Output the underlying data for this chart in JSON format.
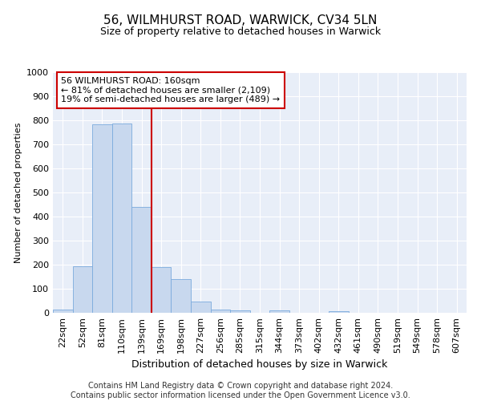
{
  "title": "56, WILMHURST ROAD, WARWICK, CV34 5LN",
  "subtitle": "Size of property relative to detached houses in Warwick",
  "xlabel": "Distribution of detached houses by size in Warwick",
  "ylabel": "Number of detached properties",
  "bar_color": "#c8d8ee",
  "bar_edge_color": "#7aaadd",
  "categories": [
    "22sqm",
    "52sqm",
    "81sqm",
    "110sqm",
    "139sqm",
    "169sqm",
    "198sqm",
    "227sqm",
    "256sqm",
    "285sqm",
    "315sqm",
    "344sqm",
    "373sqm",
    "402sqm",
    "432sqm",
    "461sqm",
    "490sqm",
    "519sqm",
    "549sqm",
    "578sqm",
    "607sqm"
  ],
  "values": [
    15,
    195,
    783,
    787,
    440,
    190,
    140,
    47,
    13,
    10,
    0,
    10,
    0,
    0,
    8,
    0,
    0,
    0,
    0,
    0,
    0
  ],
  "ylim": [
    0,
    1000
  ],
  "yticks": [
    0,
    100,
    200,
    300,
    400,
    500,
    600,
    700,
    800,
    900,
    1000
  ],
  "vline_color": "#cc0000",
  "vline_x_index": 5,
  "annotation_text": "56 WILMHURST ROAD: 160sqm\n← 81% of detached houses are smaller (2,109)\n19% of semi-detached houses are larger (489) →",
  "annotation_box_color": "#cc0000",
  "footer_line1": "Contains HM Land Registry data © Crown copyright and database right 2024.",
  "footer_line2": "Contains public sector information licensed under the Open Government Licence v3.0.",
  "background_color": "#e8eef8",
  "grid_color": "#ffffff",
  "title_fontsize": 11,
  "subtitle_fontsize": 9,
  "ylabel_fontsize": 8,
  "xlabel_fontsize": 9,
  "tick_fontsize": 8,
  "annotation_fontsize": 8,
  "footer_fontsize": 7
}
